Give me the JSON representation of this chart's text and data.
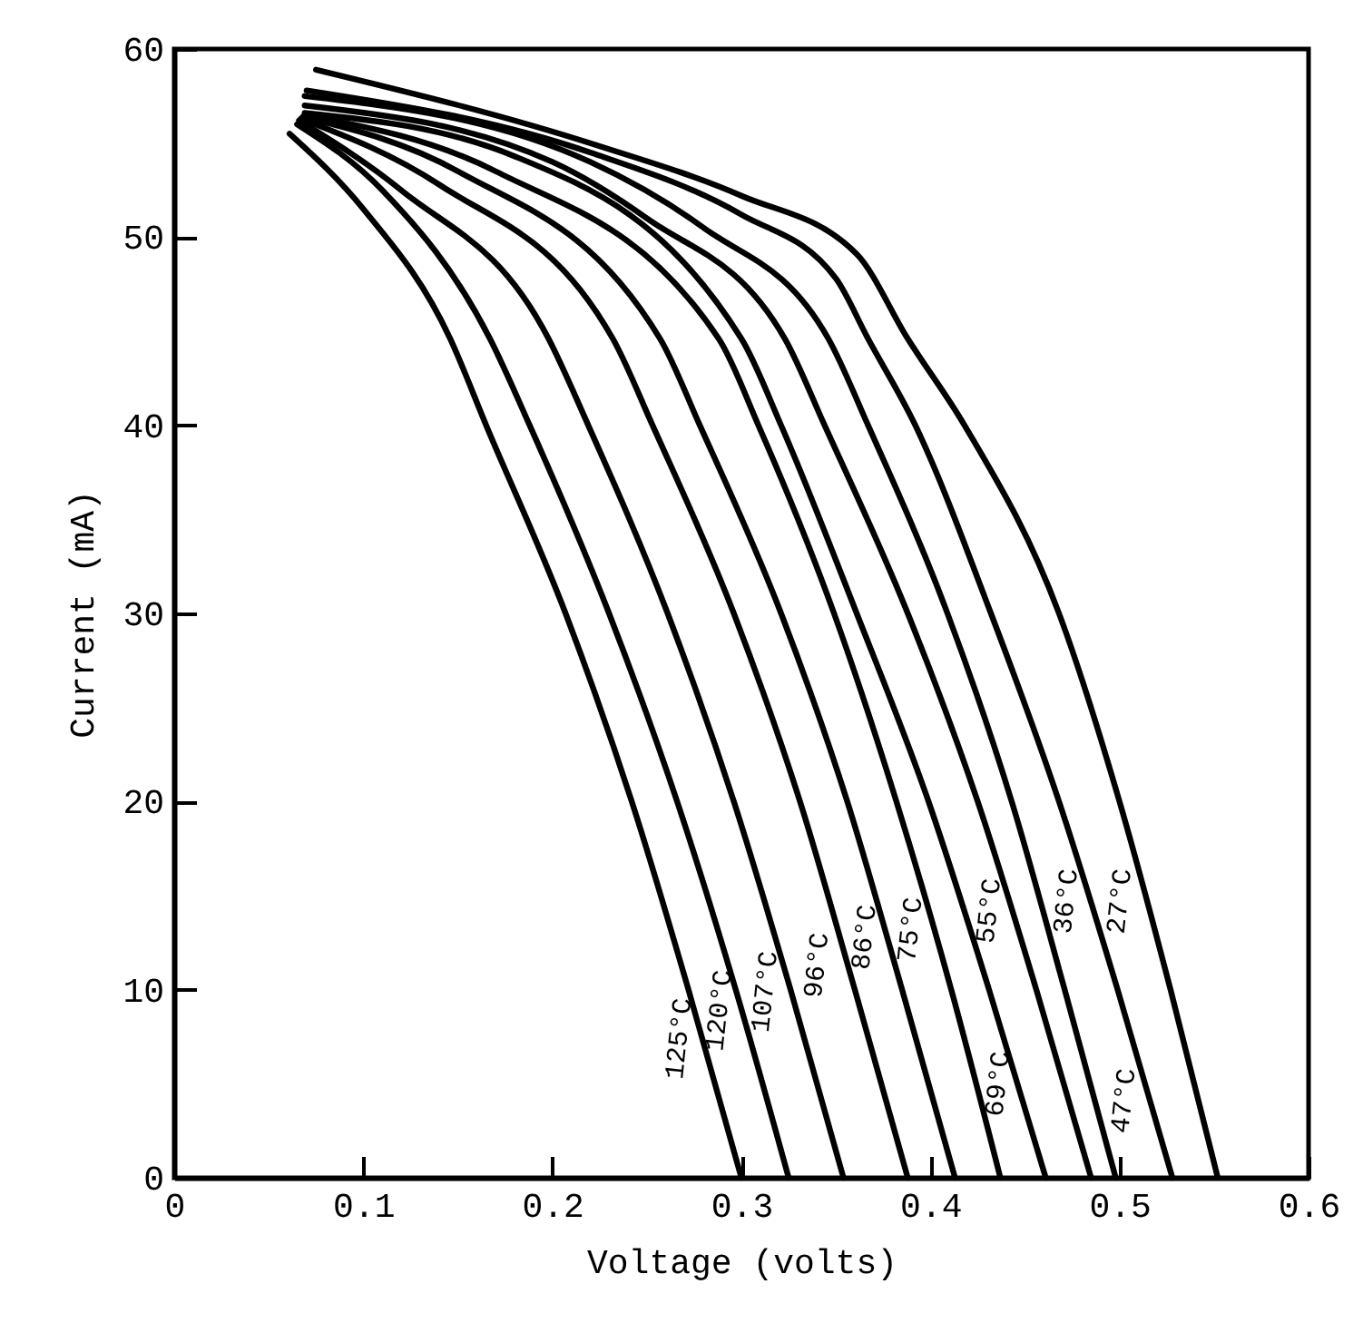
{
  "chart_data": {
    "type": "line",
    "xlabel": "Voltage (volts)",
    "ylabel": "Current (mA)",
    "xlim": [
      0,
      0.6
    ],
    "ylim": [
      0,
      60
    ],
    "xticks": [
      0,
      0.1,
      0.2,
      0.3,
      0.4,
      0.5,
      0.6
    ],
    "yticks": [
      0,
      10,
      20,
      30,
      40,
      50,
      60
    ],
    "grid": false,
    "legend": false,
    "marker": "none",
    "line_style": "solid",
    "series": [
      {
        "name": "125°C",
        "color": "#000000",
        "x": [
          0.061,
          0.1,
          0.146,
          0.165,
          0.207,
          0.242,
          0.272,
          0.3
        ],
        "values": [
          55.5,
          51.5,
          44.6,
          40,
          30,
          20,
          10,
          0
        ]
      },
      {
        "name": "120°C",
        "color": "#000000",
        "x": [
          0.065,
          0.11,
          0.167,
          0.188,
          0.23,
          0.266,
          0.297,
          0.325
        ],
        "values": [
          56,
          52.5,
          44.6,
          40,
          30,
          20,
          10,
          0
        ]
      },
      {
        "name": "107°C",
        "color": "#000000",
        "x": [
          0.066,
          0.12,
          0.198,
          0.219,
          0.261,
          0.296,
          0.326,
          0.354
        ],
        "values": [
          56.2,
          52.5,
          44.6,
          40,
          30,
          20,
          10,
          0
        ]
      },
      {
        "name": "96°C",
        "color": "#000000",
        "x": [
          0.067,
          0.14,
          0.232,
          0.253,
          0.296,
          0.331,
          0.36,
          0.388
        ],
        "values": [
          56.3,
          52.8,
          44.6,
          40,
          30,
          20,
          10,
          0
        ]
      },
      {
        "name": "86°C",
        "color": "#000000",
        "x": [
          0.068,
          0.15,
          0.257,
          0.278,
          0.321,
          0.356,
          0.385,
          0.413
        ],
        "values": [
          56.4,
          53.5,
          44.6,
          40,
          30,
          20,
          10,
          0
        ]
      },
      {
        "name": "75°C",
        "color": "#000000",
        "x": [
          0.069,
          0.17,
          0.288,
          0.309,
          0.349,
          0.382,
          0.411,
          0.437
        ],
        "values": [
          56.5,
          53.5,
          44.6,
          40,
          30,
          20,
          10,
          0
        ]
      },
      {
        "name": "69°C",
        "color": "#000000",
        "x": [
          0.069,
          0.18,
          0.3,
          0.321,
          0.361,
          0.399,
          0.431,
          0.461
        ],
        "values": [
          56.6,
          54.3,
          44.6,
          40,
          30,
          20,
          10,
          0
        ]
      },
      {
        "name": "55°C",
        "color": "#000000",
        "x": [
          0.069,
          0.2,
          0.25,
          0.323,
          0.344,
          0.388,
          0.425,
          0.456,
          0.485
        ],
        "values": [
          57,
          54,
          51,
          44.6,
          40,
          30,
          20,
          10,
          0
        ]
      },
      {
        "name": "47°C",
        "color": "#000000",
        "x": [
          0.069,
          0.22,
          0.28,
          0.346,
          0.367,
          0.409,
          0.443,
          0.471,
          0.498
        ],
        "values": [
          57.5,
          54,
          50.5,
          44.6,
          40,
          30,
          20,
          10,
          0
        ]
      },
      {
        "name": "36°C",
        "color": "#000000",
        "x": [
          0.07,
          0.22,
          0.3,
          0.35,
          0.367,
          0.392,
          0.432,
          0.468,
          0.499,
          0.528
        ],
        "values": [
          57.8,
          54.5,
          51.2,
          47.8,
          44.6,
          40,
          30,
          20,
          10,
          0
        ]
      },
      {
        "name": "27°C",
        "color": "#000000",
        "x": [
          0.075,
          0.223,
          0.3,
          0.361,
          0.388,
          0.418,
          0.468,
          0.5,
          0.527,
          0.552
        ],
        "values": [
          58.9,
          54.9,
          52.2,
          49.1,
          44.6,
          40,
          30,
          20,
          10,
          0
        ]
      }
    ]
  }
}
